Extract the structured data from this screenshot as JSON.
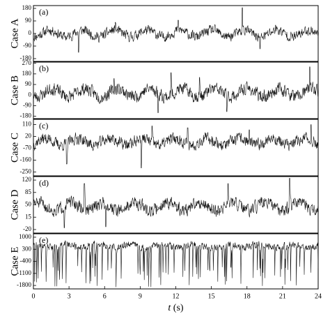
{
  "chart_data": {
    "type": "line",
    "panels": [
      {
        "id": "A",
        "panel_label": "(a)",
        "ylabel": "Case A",
        "yticks": [
          180,
          90,
          0,
          -90,
          -180
        ],
        "ylim": [
          -200,
          200
        ],
        "series": {
          "base": 0,
          "amp": 38,
          "noise": 32,
          "seed": 11,
          "spikes": [
            [
              3.8,
              -135
            ],
            [
              6.9,
              80
            ],
            [
              12.2,
              95
            ],
            [
              17.6,
              185
            ],
            [
              20.4,
              60
            ],
            [
              19.1,
              -110
            ]
          ]
        }
      },
      {
        "id": "B",
        "panel_label": "(b)",
        "ylabel": "Case B",
        "yticks": [
          270,
          180,
          90,
          0,
          -90,
          -180
        ],
        "ylim": [
          -200,
          280
        ],
        "series": {
          "base": 20,
          "amp": 55,
          "noise": 48,
          "seed": 23,
          "spikes": [
            [
              6.8,
              140
            ],
            [
              10.5,
              -150
            ],
            [
              11.6,
              190
            ],
            [
              14.0,
              150
            ],
            [
              16.3,
              -140
            ],
            [
              23.3,
              240
            ]
          ]
        }
      },
      {
        "id": "C",
        "panel_label": "(c)",
        "ylabel": "Case C",
        "yticks": [
          110,
          20,
          -70,
          -160,
          -250
        ],
        "ylim": [
          -280,
          150
        ],
        "series": {
          "base": -20,
          "amp": 40,
          "noise": 40,
          "seed": 37,
          "spikes": [
            [
              2.8,
              -190
            ],
            [
              9.1,
              -220
            ],
            [
              10.0,
              100
            ],
            [
              13.0,
              85
            ],
            [
              18.2,
              70
            ],
            [
              23.4,
              110
            ]
          ]
        }
      },
      {
        "id": "D",
        "panel_label": "(d)",
        "ylabel": "Case D",
        "yticks": [
          120,
          85,
          50,
          15,
          -20
        ],
        "ylim": [
          -30,
          130
        ],
        "series": {
          "base": 45,
          "amp": 18,
          "noise": 16,
          "seed": 51,
          "spikes": [
            [
              2.6,
              -15
            ],
            [
              4.3,
              110
            ],
            [
              16.4,
              110
            ],
            [
              21.6,
              125
            ],
            [
              6.1,
              -12
            ]
          ]
        }
      },
      {
        "id": "E",
        "panel_label": "(e)",
        "ylabel": "Case E",
        "yticks": [
          1000,
          300,
          -400,
          -1100,
          -1800
        ],
        "ylim": [
          -2000,
          1200
        ],
        "series": {
          "base": 500,
          "amp": 150,
          "noise": 180,
          "seed": 77,
          "drop_rate": 0.55,
          "drop_min": -1900
        }
      }
    ],
    "x": {
      "label": "t (s)",
      "ticks": [
        0,
        3,
        6,
        9,
        12,
        15,
        18,
        21,
        24
      ],
      "lim": [
        0,
        24
      ]
    }
  }
}
